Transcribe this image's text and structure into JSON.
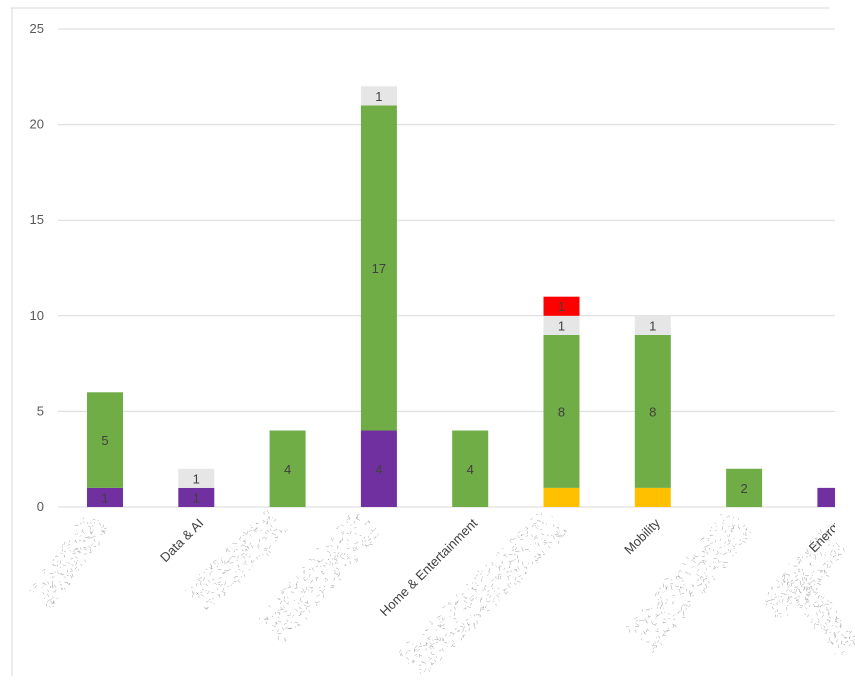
{
  "chart_data": {
    "type": "bar",
    "stacked": true,
    "title": "",
    "xlabel": "",
    "ylabel": "",
    "ylim": [
      0,
      25
    ],
    "yticks": [
      0,
      5,
      10,
      15,
      20,
      25
    ],
    "grid": true,
    "categories": [
      "",
      "Data & AI",
      "",
      "",
      "Home & Entertainment",
      "",
      "Mobility",
      "",
      "Energy"
    ],
    "series": [
      {
        "color": "#7030A0",
        "values": [
          1,
          1,
          0,
          4,
          0,
          0,
          0,
          0,
          1
        ],
        "labels": [
          "1",
          "1",
          "",
          "4",
          "",
          "",
          "",
          "",
          ""
        ]
      },
      {
        "color": "#FFC000",
        "values": [
          0,
          0,
          0,
          0,
          0,
          1,
          1,
          0,
          0
        ],
        "labels": [
          "",
          "",
          "",
          "",
          "",
          "",
          "",
          "",
          ""
        ]
      },
      {
        "color": "#70AD47",
        "values": [
          5,
          0,
          4,
          17,
          4,
          8,
          8,
          2,
          0
        ],
        "labels": [
          "5",
          "",
          "4",
          "17",
          "4",
          "8",
          "8",
          "2",
          ""
        ]
      },
      {
        "color": "#E7E6E6",
        "values": [
          0,
          1,
          0,
          1,
          0,
          1,
          1,
          0,
          0
        ],
        "labels": [
          "",
          "1",
          "",
          "1",
          "",
          "1",
          "1",
          "",
          ""
        ]
      },
      {
        "color": "#FF0000",
        "values": [
          0,
          0,
          0,
          0,
          0,
          1,
          0,
          0,
          0
        ],
        "labels": [
          "",
          "",
          "",
          "",
          "",
          "1",
          "",
          "",
          ""
        ]
      }
    ]
  }
}
